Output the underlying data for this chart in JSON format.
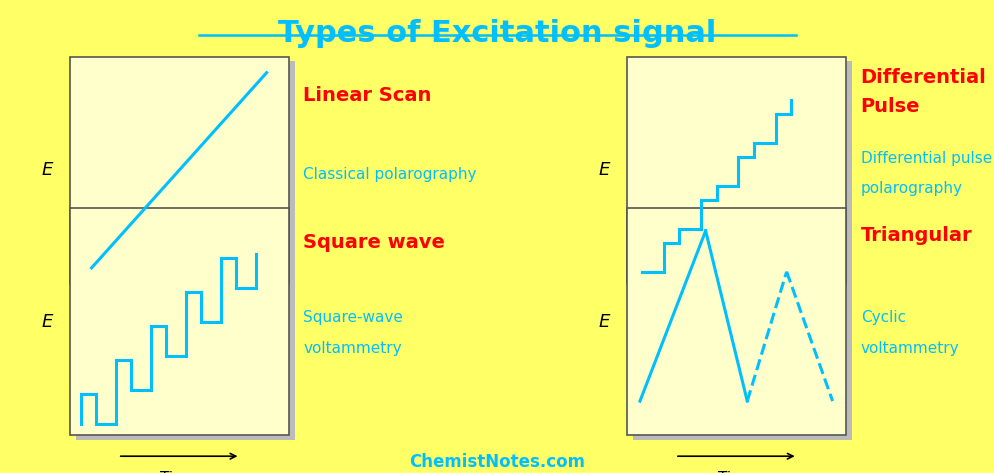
{
  "title": "Types of Excitation signal",
  "title_color": "#00BFFF",
  "title_fontsize": 22,
  "background_color": "#FFFF66",
  "box_facecolor": "#FFFFCC",
  "box_edge_color": "#555555",
  "signal_color": "#00BFFF",
  "label_color_red": "#FF0000",
  "label_color_blue": "#00BFFF",
  "shadow_color": "#BBBBBB",
  "footer": "ChemistNotes.com",
  "footer_color": "#00BFFF",
  "lw": 2.2,
  "tl": [
    0.07,
    0.4,
    0.22,
    0.48
  ],
  "tr": [
    0.63,
    0.4,
    0.22,
    0.48
  ],
  "bl": [
    0.07,
    0.08,
    0.22,
    0.48
  ],
  "br": [
    0.63,
    0.08,
    0.22,
    0.48
  ]
}
